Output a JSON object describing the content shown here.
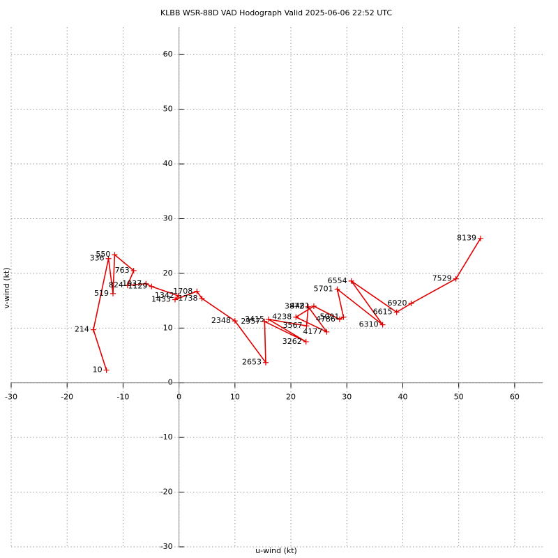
{
  "chart_data": {
    "type": "hodograph",
    "title": "KLBB WSR-88D VAD Hodograph Valid 2025-06-06 22:52 UTC",
    "x_label": "u-wind (kt)",
    "y_label": "v-wind (kt)",
    "xlim": [
      -30,
      65
    ],
    "ylim": [
      -30,
      65
    ],
    "xticks": [
      -30,
      -20,
      -10,
      0,
      10,
      20,
      30,
      40,
      50,
      60
    ],
    "yticks": [
      -30,
      -20,
      -10,
      0,
      10,
      20,
      30,
      40,
      50,
      60
    ],
    "grid": true,
    "color": "#e00000",
    "series": [
      {
        "name": "VAD",
        "color": "#e00000",
        "x": [
          -12.97,
          -15.3,
          -12.6,
          -11.8,
          -11.5,
          -8.1,
          -9.2,
          -5.9,
          -4.9,
          -0.1,
          -0.7,
          3.2,
          4.1,
          10.0,
          15.5,
          15.3,
          22.7,
          16.0,
          22.8,
          23.1,
          26.4,
          20.9,
          24.1,
          28.7,
          29.4,
          28.3,
          36.4,
          30.8,
          38.9,
          41.5,
          49.5,
          53.9
        ],
        "values": [
          2.3,
          9.7,
          22.7,
          16.3,
          23.4,
          20.5,
          17.8,
          18.1,
          17.6,
          15.9,
          15.2,
          16.7,
          15.4,
          11.3,
          3.7,
          11.2,
          7.5,
          11.6,
          10.4,
          13.9,
          9.3,
          12.0,
          14.0,
          11.6,
          12.0,
          17.1,
          10.6,
          18.6,
          12.9,
          14.5,
          19.0,
          26.4
        ],
        "labels": [
          10,
          214,
          336,
          519,
          550,
          763,
          824,
          1037,
          1129,
          1342,
          1433,
          1708,
          1738,
          2348,
          2653,
          2957,
          3262,
          3415,
          3567,
          3872,
          4177,
          4238,
          4481,
          4786,
          5091,
          5701,
          6310,
          6554,
          6615,
          6920,
          7529,
          8139
        ]
      }
    ]
  }
}
